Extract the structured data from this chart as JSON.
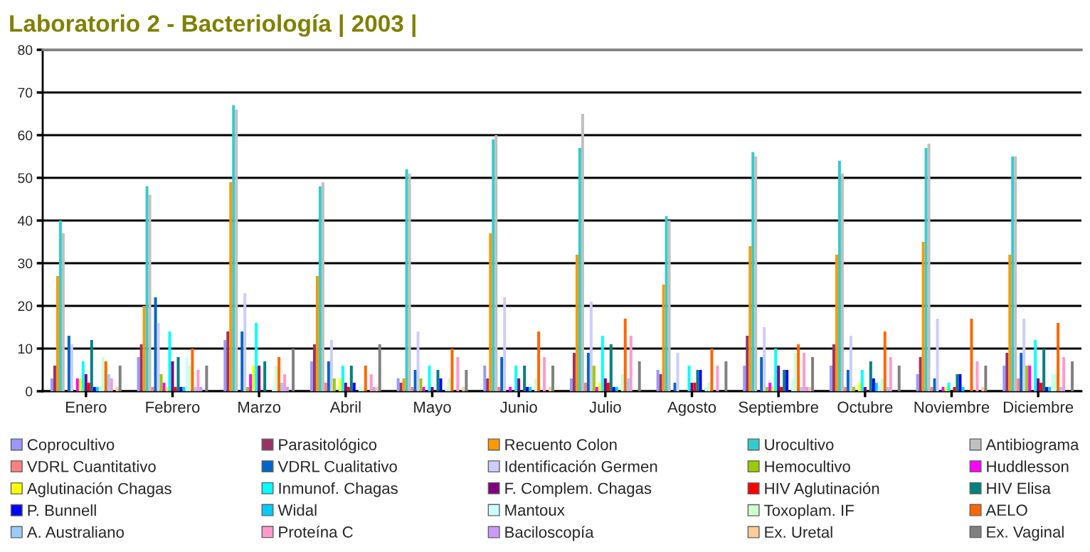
{
  "chart_data": {
    "type": "bar",
    "title": "Laboratorio 2 - Bacteriología | 2003 |",
    "categories": [
      "Enero",
      "Febrero",
      "Marzo",
      "Abril",
      "Mayo",
      "Junio",
      "Julio",
      "Agosto",
      "Septiembre",
      "Octubre",
      "Noviembre",
      "Diciembre"
    ],
    "ylim": [
      0,
      80
    ],
    "yticks": [
      0,
      10,
      20,
      30,
      40,
      50,
      60,
      70,
      80
    ],
    "grid": "y",
    "legend": "bottom",
    "series": [
      {
        "name": "Coprocultivo",
        "color": "#9999ff",
        "values": [
          3,
          8,
          12,
          7,
          3,
          6,
          3,
          5,
          6,
          6,
          4,
          6
        ]
      },
      {
        "name": "Parasitológico",
        "color": "#993366",
        "values": [
          6,
          11,
          14,
          11,
          2,
          3,
          9,
          4,
          13,
          11,
          8,
          9
        ]
      },
      {
        "name": "Recuento Colon",
        "color": "#ff9900",
        "values": [
          27,
          20,
          49,
          27,
          3,
          37,
          32,
          25,
          34,
          32,
          35,
          32
        ]
      },
      {
        "name": "Urocultivo",
        "color": "#33cccc",
        "values": [
          40,
          48,
          67,
          48,
          52,
          59,
          57,
          41,
          56,
          54,
          57,
          55
        ]
      },
      {
        "name": "Antibiograma",
        "color": "#c0c0c0",
        "values": [
          37,
          46,
          66,
          49,
          51,
          60,
          65,
          40,
          55,
          51,
          58,
          55
        ]
      },
      {
        "name": "VDRL Cuantitativo",
        "color": "#ff8080",
        "values": [
          0,
          1,
          0,
          2,
          1,
          1,
          2,
          0,
          0,
          1,
          1,
          3
        ]
      },
      {
        "name": "VDRL Cualitativo",
        "color": "#0066cc",
        "values": [
          13,
          22,
          14,
          7,
          5,
          8,
          9,
          2,
          8,
          5,
          3,
          9
        ]
      },
      {
        "name": "Identificación Germen",
        "color": "#ccccff",
        "values": [
          11,
          16,
          23,
          12,
          14,
          22,
          21,
          9,
          15,
          13,
          17,
          17
        ]
      },
      {
        "name": "Hemocultivo",
        "color": "#99cc00",
        "values": [
          0,
          4,
          1,
          3,
          3,
          0,
          6,
          0,
          1,
          1,
          0,
          6
        ]
      },
      {
        "name": "Huddlesson",
        "color": "#ff00ff",
        "values": [
          3,
          2,
          4,
          0,
          1,
          1,
          1,
          0,
          2,
          0,
          1,
          6
        ]
      },
      {
        "name": "Aglutinación Chagas",
        "color": "#ffff00",
        "values": [
          3,
          1,
          6,
          3,
          0,
          0,
          2,
          0,
          1,
          2,
          1,
          0
        ]
      },
      {
        "name": "Inmunof. Chagas",
        "color": "#00ffff",
        "values": [
          7,
          14,
          16,
          6,
          6,
          6,
          13,
          6,
          10,
          5,
          2,
          12
        ]
      },
      {
        "name": "F. Complem. Chagas",
        "color": "#800080",
        "values": [
          4,
          7,
          6,
          2,
          1,
          3,
          3,
          2,
          6,
          1,
          0,
          3
        ]
      },
      {
        "name": "HIV Aglutinación",
        "color": "#ff0000",
        "values": [
          2,
          1,
          0,
          1,
          0,
          0,
          2,
          2,
          1,
          0,
          1,
          2
        ]
      },
      {
        "name": "HIV Elisa",
        "color": "#008080",
        "values": [
          12,
          8,
          7,
          6,
          5,
          6,
          11,
          5,
          5,
          7,
          4,
          10
        ]
      },
      {
        "name": "P. Bunnell",
        "color": "#0000ff",
        "values": [
          1,
          1,
          0,
          2,
          3,
          1,
          1,
          5,
          5,
          3,
          4,
          1
        ]
      },
      {
        "name": "Widal",
        "color": "#00ccff",
        "values": [
          1,
          1,
          0,
          0,
          0,
          1,
          1,
          0,
          0,
          2,
          1,
          1
        ]
      },
      {
        "name": "Mantoux",
        "color": "#ccffff",
        "values": [
          1,
          8,
          1,
          1,
          1,
          0,
          0,
          1,
          3,
          1,
          0,
          4
        ]
      },
      {
        "name": "Toxoplam. IF",
        "color": "#ccffcc",
        "values": [
          8,
          6,
          6,
          1,
          3,
          3,
          4,
          2,
          9,
          3,
          0,
          4
        ]
      },
      {
        "name": "AELO",
        "color": "#ff6600",
        "values": [
          7,
          10,
          8,
          6,
          10,
          14,
          17,
          10,
          11,
          14,
          17,
          16
        ]
      },
      {
        "name": "A. Australiano",
        "color": "#99ccff",
        "values": [
          4,
          1,
          2,
          0,
          0,
          0,
          3,
          0,
          1,
          1,
          0,
          1
        ]
      },
      {
        "name": "Proteína C",
        "color": "#ff99cc",
        "values": [
          3,
          5,
          4,
          4,
          8,
          8,
          13,
          6,
          9,
          8,
          7,
          8
        ]
      },
      {
        "name": "Baciloscopía",
        "color": "#cc99ff",
        "values": [
          0,
          1,
          1,
          1,
          0,
          0,
          0,
          0,
          1,
          0,
          0,
          0
        ]
      },
      {
        "name": "Ex. Uretal",
        "color": "#ffcc99",
        "values": [
          1,
          0,
          0,
          1,
          1,
          1,
          0,
          0,
          1,
          0,
          1,
          0
        ]
      },
      {
        "name": "Ex. Vaginal",
        "color": "#808080",
        "values": [
          6,
          6,
          10,
          11,
          5,
          6,
          7,
          7,
          8,
          6,
          6,
          7
        ]
      }
    ]
  }
}
